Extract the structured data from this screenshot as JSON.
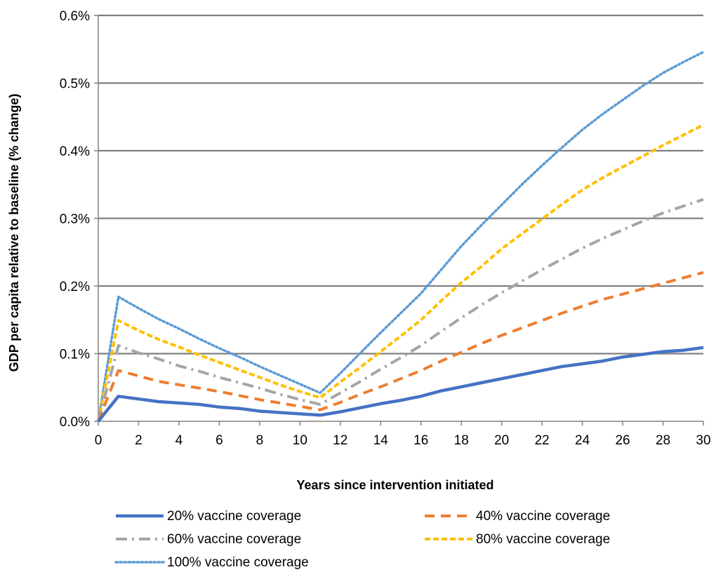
{
  "chart_data": {
    "type": "line",
    "xlabel": "Years since intervention initiated",
    "ylabel": "GDP per capita relative to baseline  (% change)",
    "xlim": [
      0,
      30
    ],
    "ylim": [
      0,
      0.6
    ],
    "x_ticks": [
      0,
      2,
      4,
      6,
      8,
      10,
      12,
      14,
      16,
      18,
      20,
      22,
      24,
      26,
      28,
      30
    ],
    "y_ticks": [
      0,
      0.1,
      0.2,
      0.3,
      0.4,
      0.5,
      0.6
    ],
    "y_tick_labels": [
      "0.0%",
      "0.1%",
      "0.2%",
      "0.3%",
      "0.4%",
      "0.5%",
      "0.6%"
    ],
    "grid": "horizontal",
    "legend_position": "bottom",
    "x": [
      0,
      1,
      2,
      3,
      4,
      5,
      6,
      7,
      8,
      9,
      10,
      11,
      12,
      13,
      14,
      15,
      16,
      17,
      18,
      19,
      20,
      21,
      22,
      23,
      24,
      25,
      26,
      27,
      28,
      29,
      30
    ],
    "series": [
      {
        "name": "20% vaccine coverage",
        "color": "#4472C4",
        "style": "solid",
        "values": [
          0.0,
          0.037,
          0.033,
          0.029,
          0.027,
          0.025,
          0.021,
          0.019,
          0.015,
          0.013,
          0.011,
          0.009,
          0.014,
          0.02,
          0.026,
          0.031,
          0.037,
          0.045,
          0.051,
          0.057,
          0.063,
          0.069,
          0.075,
          0.081,
          0.085,
          0.089,
          0.095,
          0.099,
          0.103,
          0.105,
          0.109
        ]
      },
      {
        "name": "40% vaccine coverage",
        "color": "#ED7D31",
        "style": "dashed",
        "values": [
          0.0,
          0.075,
          0.067,
          0.059,
          0.054,
          0.049,
          0.044,
          0.038,
          0.032,
          0.027,
          0.022,
          0.017,
          0.028,
          0.04,
          0.051,
          0.063,
          0.075,
          0.089,
          0.102,
          0.115,
          0.127,
          0.138,
          0.149,
          0.16,
          0.17,
          0.18,
          0.188,
          0.196,
          0.204,
          0.212,
          0.22
        ]
      },
      {
        "name": "60% vaccine coverage",
        "color": "#A5A5A5",
        "style": "dashdot",
        "values": [
          0.0,
          0.112,
          0.101,
          0.092,
          0.082,
          0.074,
          0.065,
          0.057,
          0.049,
          0.04,
          0.032,
          0.025,
          0.042,
          0.059,
          0.077,
          0.094,
          0.112,
          0.133,
          0.153,
          0.172,
          0.19,
          0.207,
          0.224,
          0.24,
          0.256,
          0.27,
          0.283,
          0.296,
          0.308,
          0.318,
          0.328
        ]
      },
      {
        "name": "80% vaccine coverage",
        "color": "#FFC000",
        "style": "dashed-short",
        "values": [
          0.0,
          0.149,
          0.134,
          0.121,
          0.11,
          0.098,
          0.087,
          0.076,
          0.065,
          0.054,
          0.044,
          0.035,
          0.058,
          0.08,
          0.103,
          0.126,
          0.15,
          0.178,
          0.205,
          0.229,
          0.255,
          0.277,
          0.299,
          0.321,
          0.342,
          0.36,
          0.376,
          0.392,
          0.408,
          0.423,
          0.438
        ]
      },
      {
        "name": "100% vaccine coverage",
        "color": "#5B9BD5",
        "style": "dotted",
        "values": [
          0.0,
          0.184,
          0.167,
          0.151,
          0.137,
          0.122,
          0.108,
          0.095,
          0.081,
          0.068,
          0.055,
          0.042,
          0.071,
          0.101,
          0.131,
          0.16,
          0.189,
          0.224,
          0.259,
          0.29,
          0.32,
          0.35,
          0.378,
          0.405,
          0.431,
          0.454,
          0.475,
          0.496,
          0.515,
          0.531,
          0.546
        ]
      }
    ]
  }
}
